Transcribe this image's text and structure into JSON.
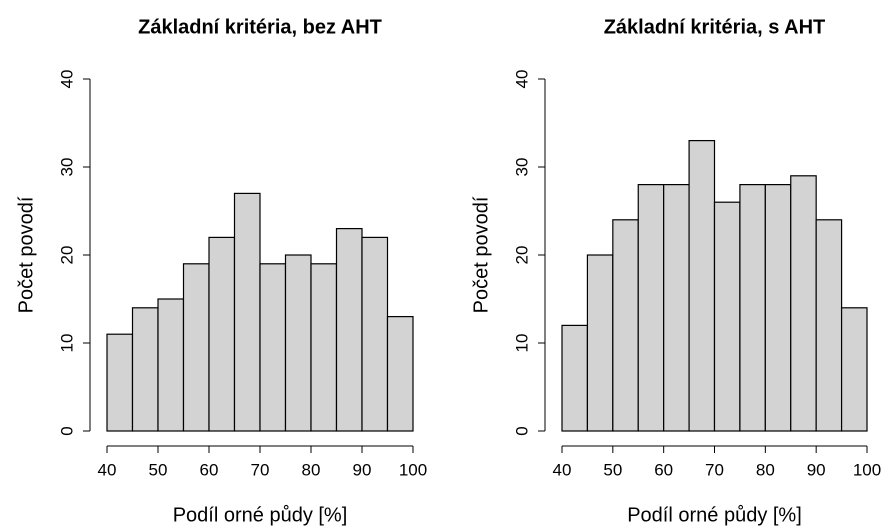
{
  "chart_data": [
    {
      "type": "histogram",
      "title": "Základní kritéria, bez AHT",
      "xlabel": "Podíl orné půdy [%]",
      "ylabel": "Počet povodí",
      "bins": [
        40,
        45,
        50,
        55,
        60,
        65,
        70,
        75,
        80,
        85,
        90,
        95,
        100
      ],
      "values": [
        11,
        14,
        15,
        19,
        22,
        27,
        19,
        20,
        19,
        23,
        22,
        13
      ],
      "color": "#d3d3d3",
      "xlim": [
        40,
        100
      ],
      "ylim": [
        0,
        40
      ],
      "xticks": [
        40,
        50,
        60,
        70,
        80,
        90,
        100
      ],
      "yticks": [
        0,
        10,
        20,
        30,
        40
      ]
    },
    {
      "type": "histogram",
      "title": "Základní kritéria, s AHT",
      "xlabel": "Podíl orné půdy [%]",
      "ylabel": "Počet povodí",
      "bins": [
        40,
        45,
        50,
        55,
        60,
        65,
        70,
        75,
        80,
        85,
        90,
        95,
        100
      ],
      "values": [
        12,
        20,
        24,
        28,
        28,
        33,
        26,
        28,
        28,
        29,
        24,
        14
      ],
      "color": "#d3d3d3",
      "xlim": [
        40,
        100
      ],
      "ylim": [
        0,
        40
      ],
      "xticks": [
        40,
        50,
        60,
        70,
        80,
        90,
        100
      ],
      "yticks": [
        0,
        10,
        20,
        30,
        40
      ]
    }
  ]
}
